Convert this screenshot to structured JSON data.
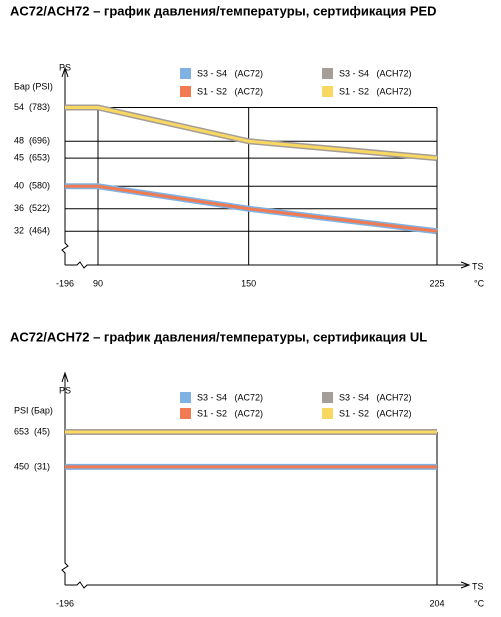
{
  "chart_data": [
    {
      "type": "line",
      "title": "AC72/ACH72 – график давления/температуры, сертификация PED",
      "y_axis_title": "PS",
      "y_unit_label": "Бар (PSI)",
      "x_axis_title": "TS",
      "x_unit_label": "°C",
      "x": [
        -196,
        90,
        150,
        225
      ],
      "axis_break": [
        -196,
        90
      ],
      "xlim": [
        -196,
        225
      ],
      "xticks": [
        -196,
        90,
        150,
        225
      ],
      "ylim": [
        26,
        58
      ],
      "yticks": [
        {
          "value": 54,
          "label": "54  (783)"
        },
        {
          "value": 48,
          "label": "48  (696)"
        },
        {
          "value": 45,
          "label": "45  (653)"
        },
        {
          "value": 40,
          "label": "40  (580)"
        },
        {
          "value": 36,
          "label": "36  (522)"
        },
        {
          "value": 32,
          "label": "32  (464)"
        }
      ],
      "grid": true,
      "series": [
        {
          "name": "S3 - S4   (AC72)",
          "color": "#7fb2e3",
          "values": [
            40,
            40,
            36,
            32
          ]
        },
        {
          "name": "S1 - S2   (AC72)",
          "color": "#f07a52",
          "values": [
            40,
            40,
            36,
            32
          ]
        },
        {
          "name": "S3 - S4   (ACH72)",
          "color": "#a59d97",
          "values": [
            54,
            54,
            48,
            45
          ]
        },
        {
          "name": "S1 - S2   (ACH72)",
          "color": "#f9d862",
          "values": [
            54,
            54,
            48,
            45
          ]
        }
      ]
    },
    {
      "type": "line",
      "title": "AC72/ACH72 – график давления/температуры, сертификация UL",
      "y_axis_title": "PS",
      "y_unit_label": "PSI (Бар)",
      "x_axis_title": "TS",
      "x_unit_label": "°C",
      "x": [
        -196,
        204
      ],
      "xlim": [
        -196,
        204
      ],
      "xticks": [
        -196,
        204
      ],
      "ylim": [
        -236,
        897
      ],
      "yticks": [
        {
          "value": 653,
          "label": "653  (45)"
        },
        {
          "value": 450,
          "label": "450  (31)"
        }
      ],
      "grid": false,
      "series": [
        {
          "name": "S3 - S4   (AC72)",
          "color": "#7fb2e3",
          "values": [
            450,
            450
          ]
        },
        {
          "name": "S1 - S2   (AC72)",
          "color": "#f07a52",
          "values": [
            450,
            450
          ]
        },
        {
          "name": "S3 - S4   (ACH72)",
          "color": "#a59d97",
          "values": [
            653,
            653
          ]
        },
        {
          "name": "S1 - S2   (ACH72)",
          "color": "#f9d862",
          "values": [
            653,
            653
          ]
        }
      ]
    }
  ]
}
